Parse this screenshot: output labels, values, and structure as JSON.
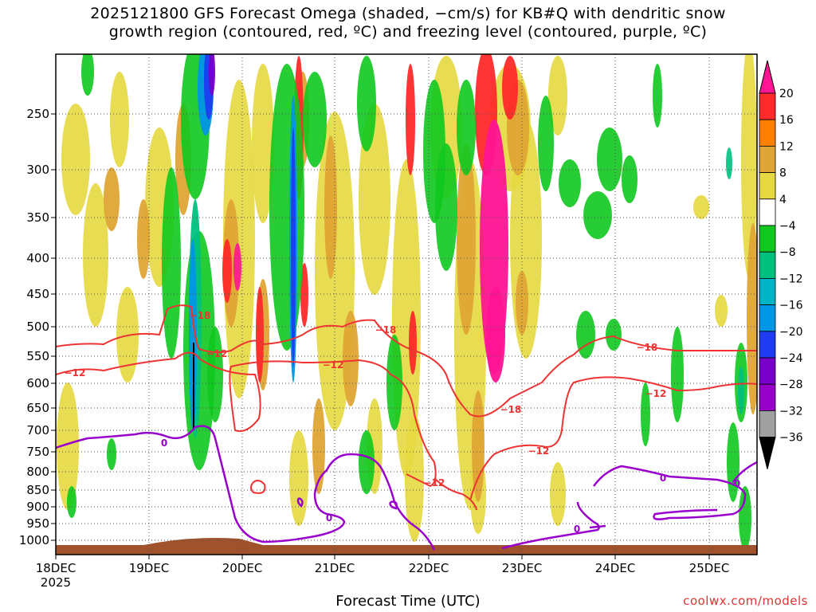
{
  "title": {
    "line1": "2025121800 GFS Forecast Omega (shaded, −cm/s) for KB#Q with dendritic snow",
    "line2": "growth region (contoured, red, ºC) and freezing level (contoured, purple, ºC)"
  },
  "credit": "coolwx.com/models",
  "chart_data": {
    "type": "heatmap",
    "xlabel": "Forecast Time (UTC)",
    "ylabel": "",
    "x_ticks": [
      "18DEC",
      "19DEC",
      "20DEC",
      "21DEC",
      "22DEC",
      "23DEC",
      "24DEC",
      "25DEC"
    ],
    "x_year_label": "2025",
    "y_ticks": [
      "250",
      "300",
      "350",
      "400",
      "450",
      "500",
      "550",
      "600",
      "650",
      "700",
      "750",
      "800",
      "850",
      "900",
      "950",
      "1000"
    ],
    "y_axis_reversed": true,
    "grid": true,
    "colorbar": {
      "labels": [
        "20",
        "16",
        "12",
        "8",
        "4",
        "−4",
        "−8",
        "−12",
        "−16",
        "−20",
        "−24",
        "−28",
        "−32",
        "−36"
      ],
      "colors": [
        "#ff1493",
        "#ff2a2a",
        "#ff7f00",
        "#dfa535",
        "#e6d840",
        "#ffffff",
        "#10c81e",
        "#00c080",
        "#00b4c8",
        "#0096e6",
        "#1e3cf0",
        "#7800c8",
        "#9600c8",
        "#a0a0a0",
        "#000000"
      ]
    },
    "contours": {
      "red_labels": [
        "−18",
        "−12",
        "−12",
        "−18",
        "−12",
        "−12",
        "−18",
        "−12",
        "−18",
        "−12"
      ],
      "purple_labels": [
        "0",
        "0",
        "0",
        "0",
        "0"
      ]
    }
  }
}
